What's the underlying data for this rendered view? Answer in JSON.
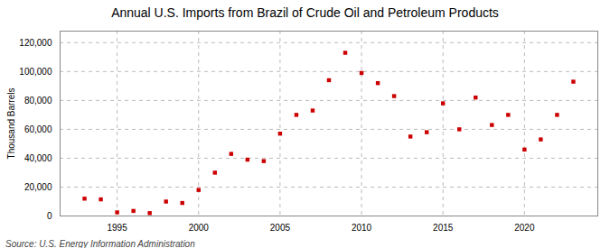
{
  "chart_data": {
    "type": "scatter",
    "title": "Annual U.S. Imports from Brazil of Crude Oil and Petroleum Products",
    "ylabel": "Thousand Barrels",
    "caption": "Source: U.S. Energy Information Administration",
    "x": [
      1993,
      1994,
      1995,
      1996,
      1997,
      1998,
      1999,
      2000,
      2001,
      2002,
      2003,
      2004,
      2005,
      2006,
      2007,
      2008,
      2009,
      2010,
      2011,
      2012,
      2013,
      2014,
      2015,
      2016,
      2017,
      2018,
      2019,
      2020,
      2021,
      2022,
      2023
    ],
    "values": [
      12000,
      11500,
      2500,
      3500,
      2000,
      10000,
      9000,
      18000,
      30000,
      43000,
      39000,
      38000,
      57000,
      70000,
      73000,
      94000,
      113000,
      99000,
      92000,
      83000,
      55000,
      58000,
      78000,
      60000,
      82000,
      63000,
      70000,
      46000,
      53000,
      70000,
      93000
    ],
    "color": "#cc0000",
    "marker": "square",
    "xlim": [
      1991.5,
      2024.5
    ],
    "xticks": [
      1995,
      2000,
      2005,
      2010,
      2015,
      2020
    ],
    "ylim": [
      0,
      128000
    ],
    "yticks": [
      0,
      {
        "value": 20000,
        "label": "20,000"
      },
      {
        "value": 40000,
        "label": "40,000"
      },
      {
        "value": 60000,
        "label": "60,000"
      },
      {
        "value": 80000,
        "label": "80,000"
      },
      {
        "value": 100000,
        "label": "100,000"
      },
      {
        "value": 120000,
        "label": "120,000"
      }
    ],
    "grid": true
  }
}
